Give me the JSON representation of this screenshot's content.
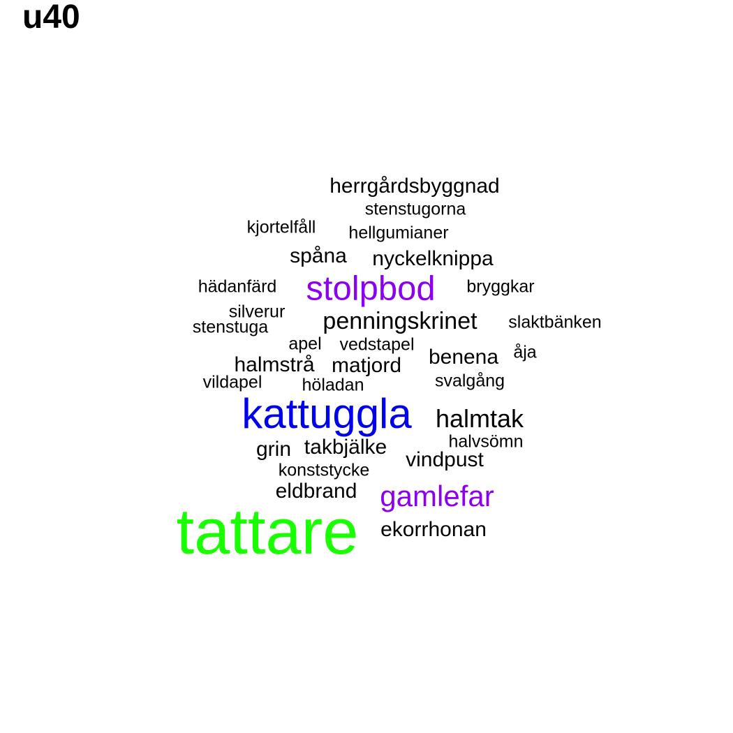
{
  "title": "u40",
  "colors": {
    "default": "#000000",
    "purple": "#8b00ee",
    "blue": "#0000ee",
    "green": "#1aff00"
  },
  "words": [
    {
      "text": "herrgårdsbyggnad",
      "color": "default"
    },
    {
      "text": "stenstugorna",
      "color": "default"
    },
    {
      "text": "kjortelfåll",
      "color": "default"
    },
    {
      "text": "hellgumianer",
      "color": "default"
    },
    {
      "text": "spåna",
      "color": "default"
    },
    {
      "text": "nyckelknippa",
      "color": "default"
    },
    {
      "text": "hädanfärd",
      "color": "default"
    },
    {
      "text": "stolpbod",
      "color": "purple"
    },
    {
      "text": "bryggkar",
      "color": "default"
    },
    {
      "text": "silverur",
      "color": "default"
    },
    {
      "text": "stenstuga",
      "color": "default"
    },
    {
      "text": "penningskrinet",
      "color": "default"
    },
    {
      "text": "slaktbänken",
      "color": "default"
    },
    {
      "text": "apel",
      "color": "default"
    },
    {
      "text": "vedstapel",
      "color": "default"
    },
    {
      "text": "benena",
      "color": "default"
    },
    {
      "text": "åja",
      "color": "default"
    },
    {
      "text": "halmstrå",
      "color": "default"
    },
    {
      "text": "matjord",
      "color": "default"
    },
    {
      "text": "vildapel",
      "color": "default"
    },
    {
      "text": "höladan",
      "color": "default"
    },
    {
      "text": "svalgång",
      "color": "default"
    },
    {
      "text": "kattuggla",
      "color": "blue"
    },
    {
      "text": "halmtak",
      "color": "default"
    },
    {
      "text": "halvsömn",
      "color": "default"
    },
    {
      "text": "grin",
      "color": "default"
    },
    {
      "text": "takbjälke",
      "color": "default"
    },
    {
      "text": "vindpust",
      "color": "default"
    },
    {
      "text": "konststycke",
      "color": "default"
    },
    {
      "text": "eldbrand",
      "color": "default"
    },
    {
      "text": "gamlefar",
      "color": "purple"
    },
    {
      "text": "tattare",
      "color": "green"
    },
    {
      "text": "ekorrhonan",
      "color": "default"
    }
  ]
}
